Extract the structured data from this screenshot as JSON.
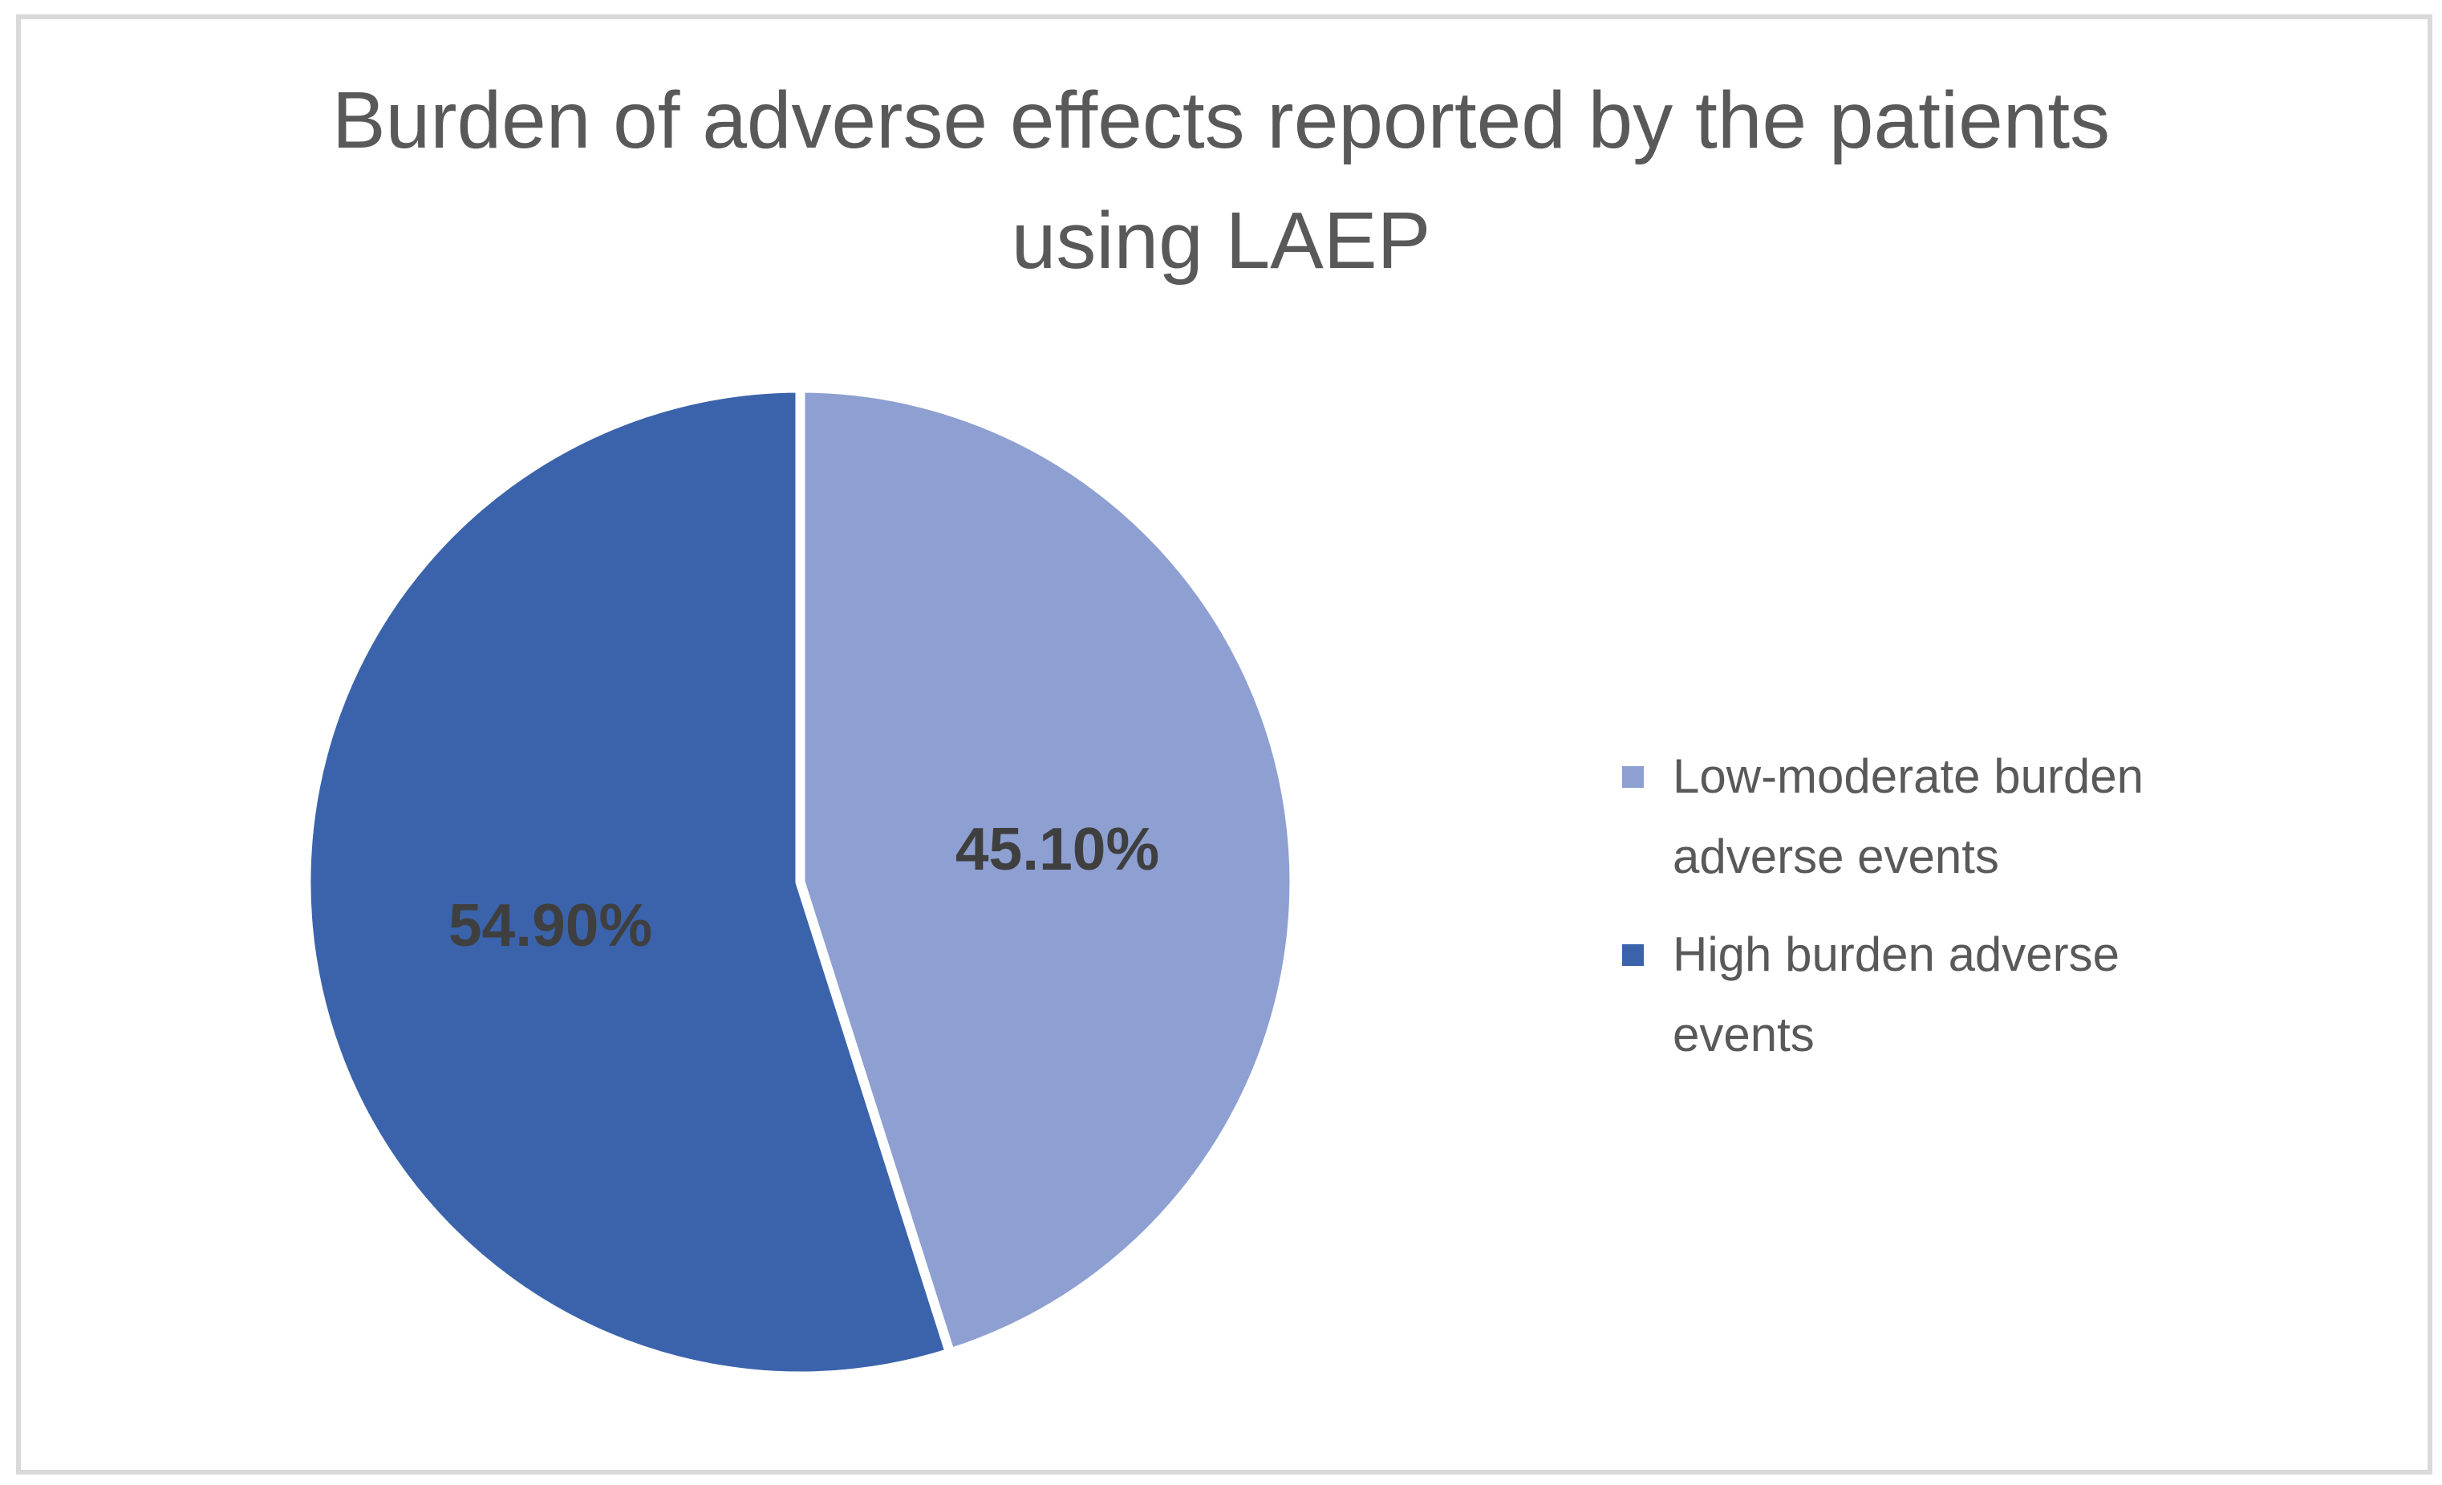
{
  "chart_data": {
    "type": "pie",
    "title": "Burden of adverse effects reported by the patients using LAEP",
    "categories": [
      "Low-moderate burden adverse events",
      "High burden adverse events"
    ],
    "values": [
      45.1,
      54.9
    ],
    "data_labels": [
      "45.10%",
      "54.90%"
    ],
    "colors": [
      "#8E9FD2",
      "#3B63AB"
    ],
    "label_color": "#3F3F3F",
    "text_color": "#595959",
    "frame_color": "#D9D9D9",
    "start_angle_deg": 0,
    "direction": "clockwise",
    "legend_position": "right",
    "grid": "off"
  }
}
